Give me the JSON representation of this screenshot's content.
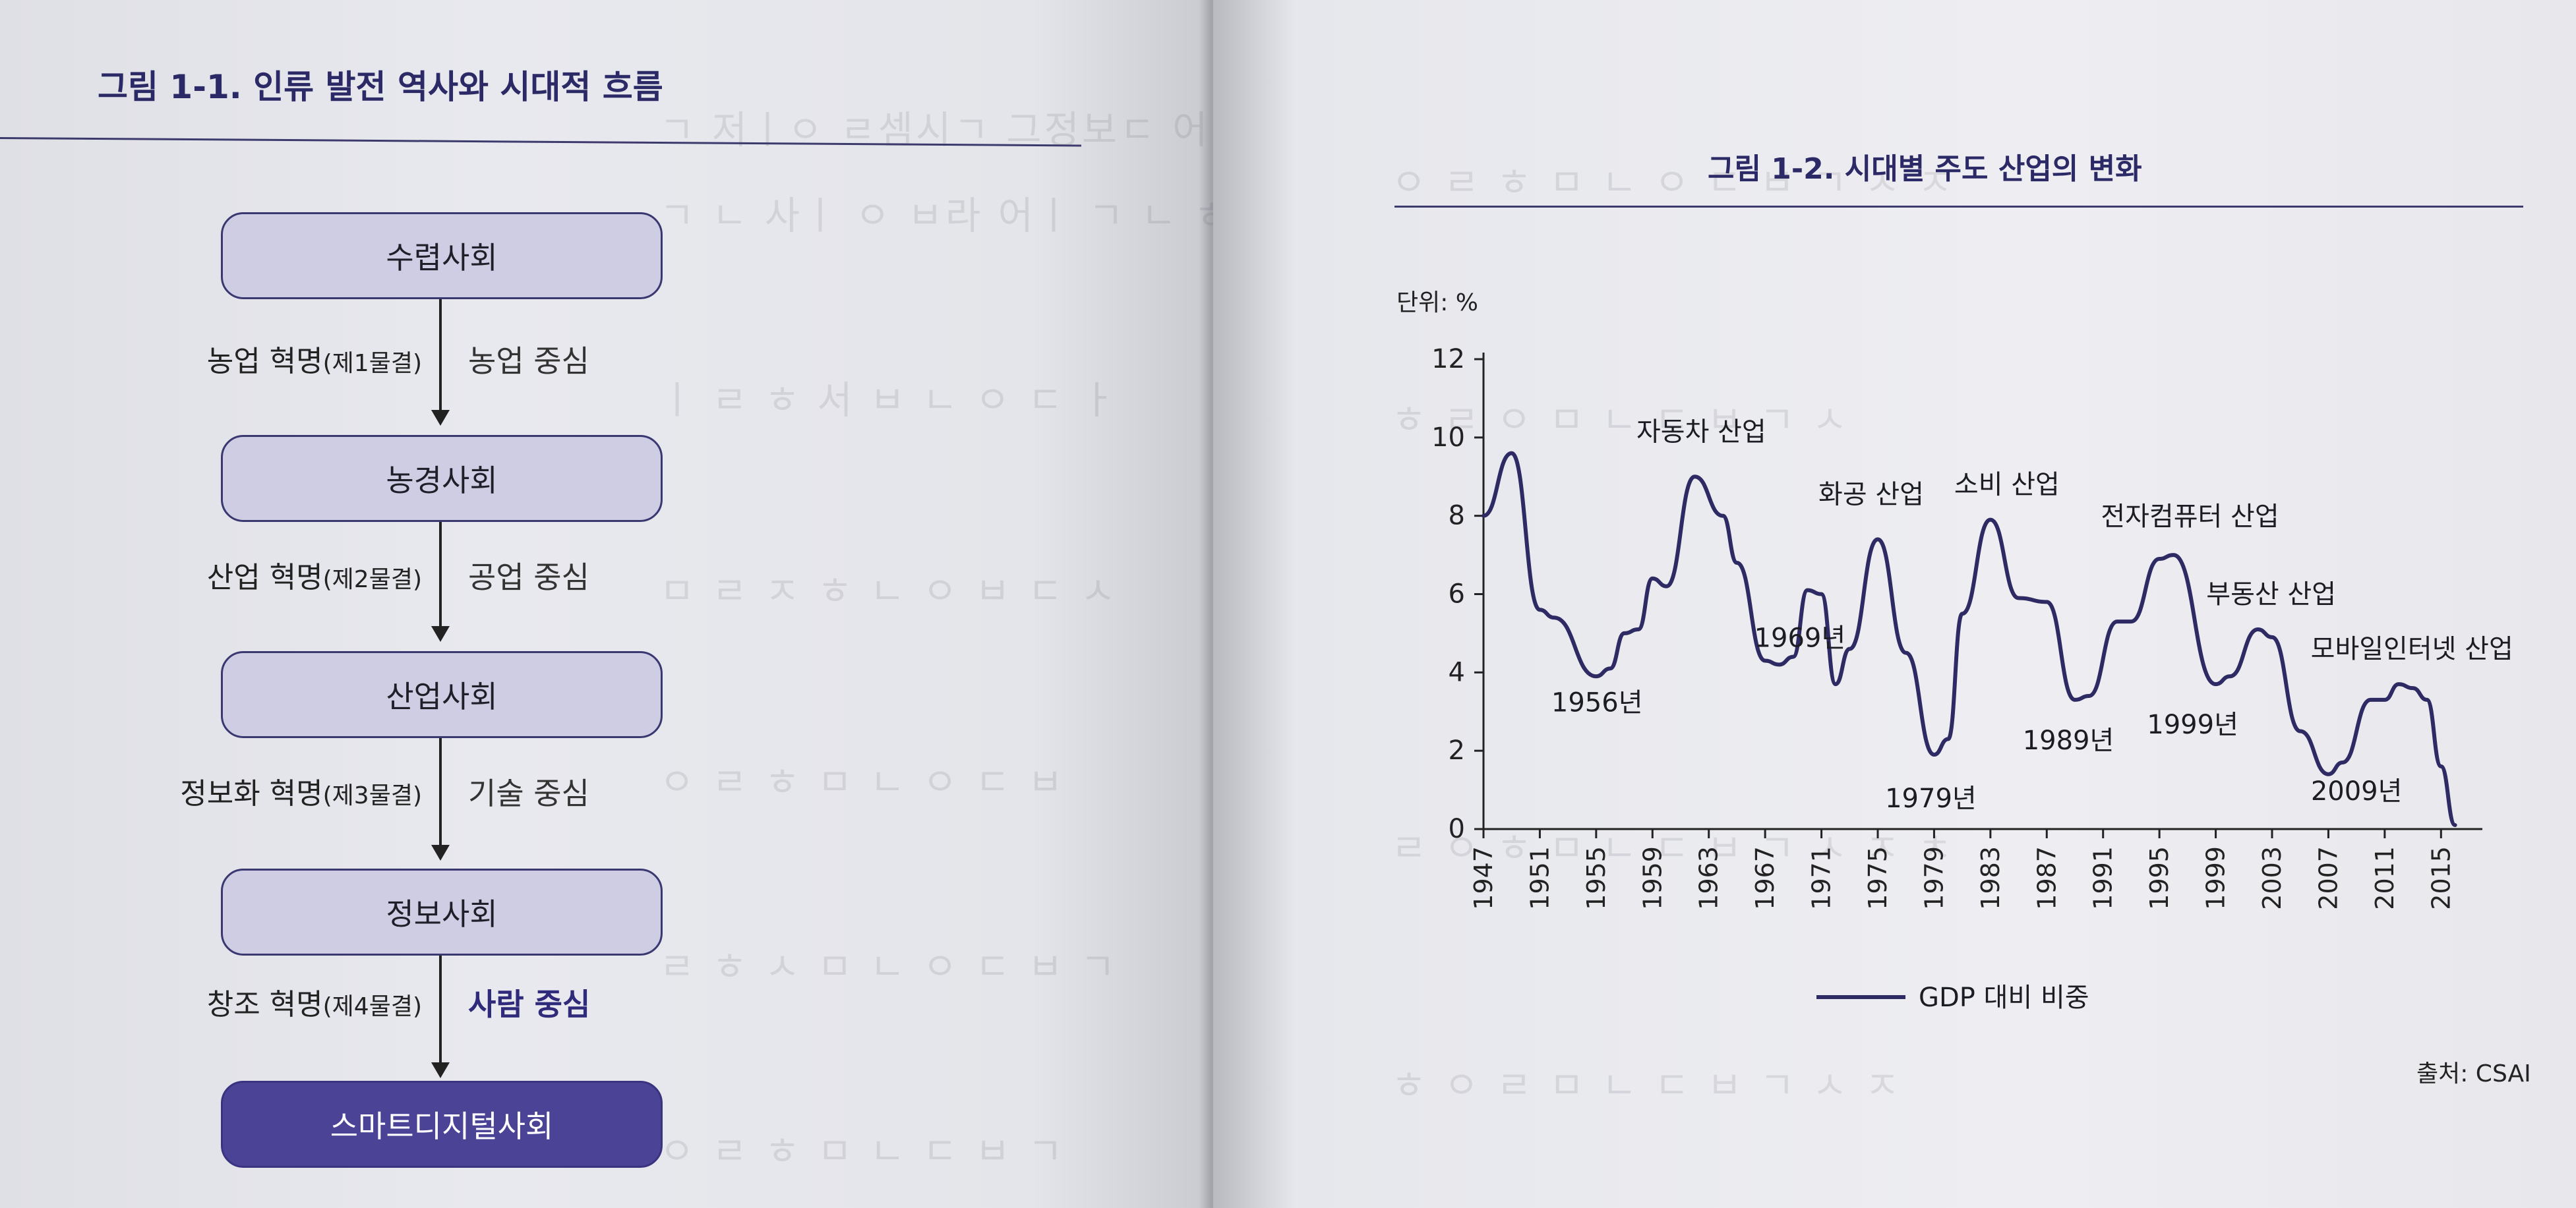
{
  "left_page": {
    "figure_title": "그림 1-1. 인류 발전 역사와 시대적 흐름",
    "stages": [
      {
        "name": "수렵사회"
      },
      {
        "name": "농경사회"
      },
      {
        "name": "산업사회"
      },
      {
        "name": "정보사회"
      },
      {
        "name": "스마트디지털사회"
      }
    ],
    "transitions": [
      {
        "revolution": "농업 혁명",
        "note": "(제1물결)",
        "focus": "농업 중심"
      },
      {
        "revolution": "산업 혁명",
        "note": "(제2물결)",
        "focus": "공업 중심"
      },
      {
        "revolution": "정보화 혁명",
        "note": "(제3물결)",
        "focus": "기술 중심"
      },
      {
        "revolution": "창조 혁명",
        "note": "(제4물결)",
        "focus": "사람 중심"
      }
    ]
  },
  "right_page": {
    "figure_title": "그림 1-2. 시대별 주도 산업의 변화",
    "unit_label": "단위: %",
    "source": "출처: CSAI",
    "legend_label": "GDP 대비 비중"
  },
  "chart_data": {
    "type": "line",
    "title": "그림 1-2. 시대별 주도 산업의 변화",
    "ylabel": "단위: %",
    "xlabel": "",
    "ylim": [
      0,
      12
    ],
    "xlim": [
      1947,
      2017
    ],
    "y_ticks": [
      "0",
      "2",
      "4",
      "6",
      "8",
      "10",
      "12"
    ],
    "x_ticks": [
      "1947",
      "1951",
      "1955",
      "1959",
      "1963",
      "1967",
      "1971",
      "1975",
      "1979",
      "1983",
      "1987",
      "1991",
      "1995",
      "1999",
      "2003",
      "2007",
      "2011",
      "2015"
    ],
    "series": [
      {
        "name": "GDP 대비 비중",
        "color": "#2e2a63",
        "points": [
          [
            1947,
            8.0
          ],
          [
            1949,
            9.6
          ],
          [
            1951,
            5.6
          ],
          [
            1952,
            5.4
          ],
          [
            1955,
            3.9
          ],
          [
            1956,
            4.1
          ],
          [
            1957,
            5.0
          ],
          [
            1958,
            5.1
          ],
          [
            1959,
            6.4
          ],
          [
            1960,
            6.2
          ],
          [
            1962,
            9.0
          ],
          [
            1964,
            8.0
          ],
          [
            1965,
            6.8
          ],
          [
            1967,
            4.3
          ],
          [
            1968,
            4.2
          ],
          [
            1969,
            4.4
          ],
          [
            1970,
            6.1
          ],
          [
            1971,
            6.0
          ],
          [
            1972,
            3.7
          ],
          [
            1973,
            4.6
          ],
          [
            1975,
            7.4
          ],
          [
            1977,
            4.5
          ],
          [
            1979,
            1.9
          ],
          [
            1980,
            2.3
          ],
          [
            1981,
            5.5
          ],
          [
            1983,
            7.9
          ],
          [
            1985,
            5.9
          ],
          [
            1987,
            5.8
          ],
          [
            1989,
            3.3
          ],
          [
            1990,
            3.4
          ],
          [
            1992,
            5.3
          ],
          [
            1993,
            5.3
          ],
          [
            1995,
            6.9
          ],
          [
            1996,
            7.0
          ],
          [
            1999,
            3.7
          ],
          [
            2000,
            3.9
          ],
          [
            2002,
            5.1
          ],
          [
            2003,
            4.9
          ],
          [
            2005,
            2.5
          ],
          [
            2007,
            1.4
          ],
          [
            2008,
            1.7
          ],
          [
            2010,
            3.3
          ],
          [
            2011,
            3.3
          ],
          [
            2012,
            3.7
          ],
          [
            2013,
            3.6
          ],
          [
            2014,
            3.3
          ],
          [
            2015,
            1.6
          ],
          [
            2016,
            0.1
          ]
        ]
      }
    ],
    "annotations": [
      {
        "text": "자동차 산업",
        "x": 1962,
        "y": 9.0
      },
      {
        "text": "화공 산업",
        "x": 1975,
        "y": 7.4
      },
      {
        "text": "소비 산업",
        "x": 1983,
        "y": 7.9
      },
      {
        "text": "전자컴퓨터 산업",
        "x": 1996,
        "y": 7.0
      },
      {
        "text": "부동산 산업",
        "x": 2002,
        "y": 5.1
      },
      {
        "text": "모바일인터넷 산업",
        "x": 2012,
        "y": 3.7
      },
      {
        "text": "1956년",
        "x": 1956,
        "y": 4.1
      },
      {
        "text": "1969년",
        "x": 1969,
        "y": 4.4
      },
      {
        "text": "1979년",
        "x": 1979,
        "y": 1.9
      },
      {
        "text": "1989년",
        "x": 1989,
        "y": 3.3
      },
      {
        "text": "1999년",
        "x": 1999,
        "y": 3.7
      },
      {
        "text": "2009년",
        "x": 2009,
        "y": 2.0
      }
    ],
    "legend": {
      "placement": "bottom",
      "label": "GDP 대비 비중"
    },
    "grid": false
  }
}
